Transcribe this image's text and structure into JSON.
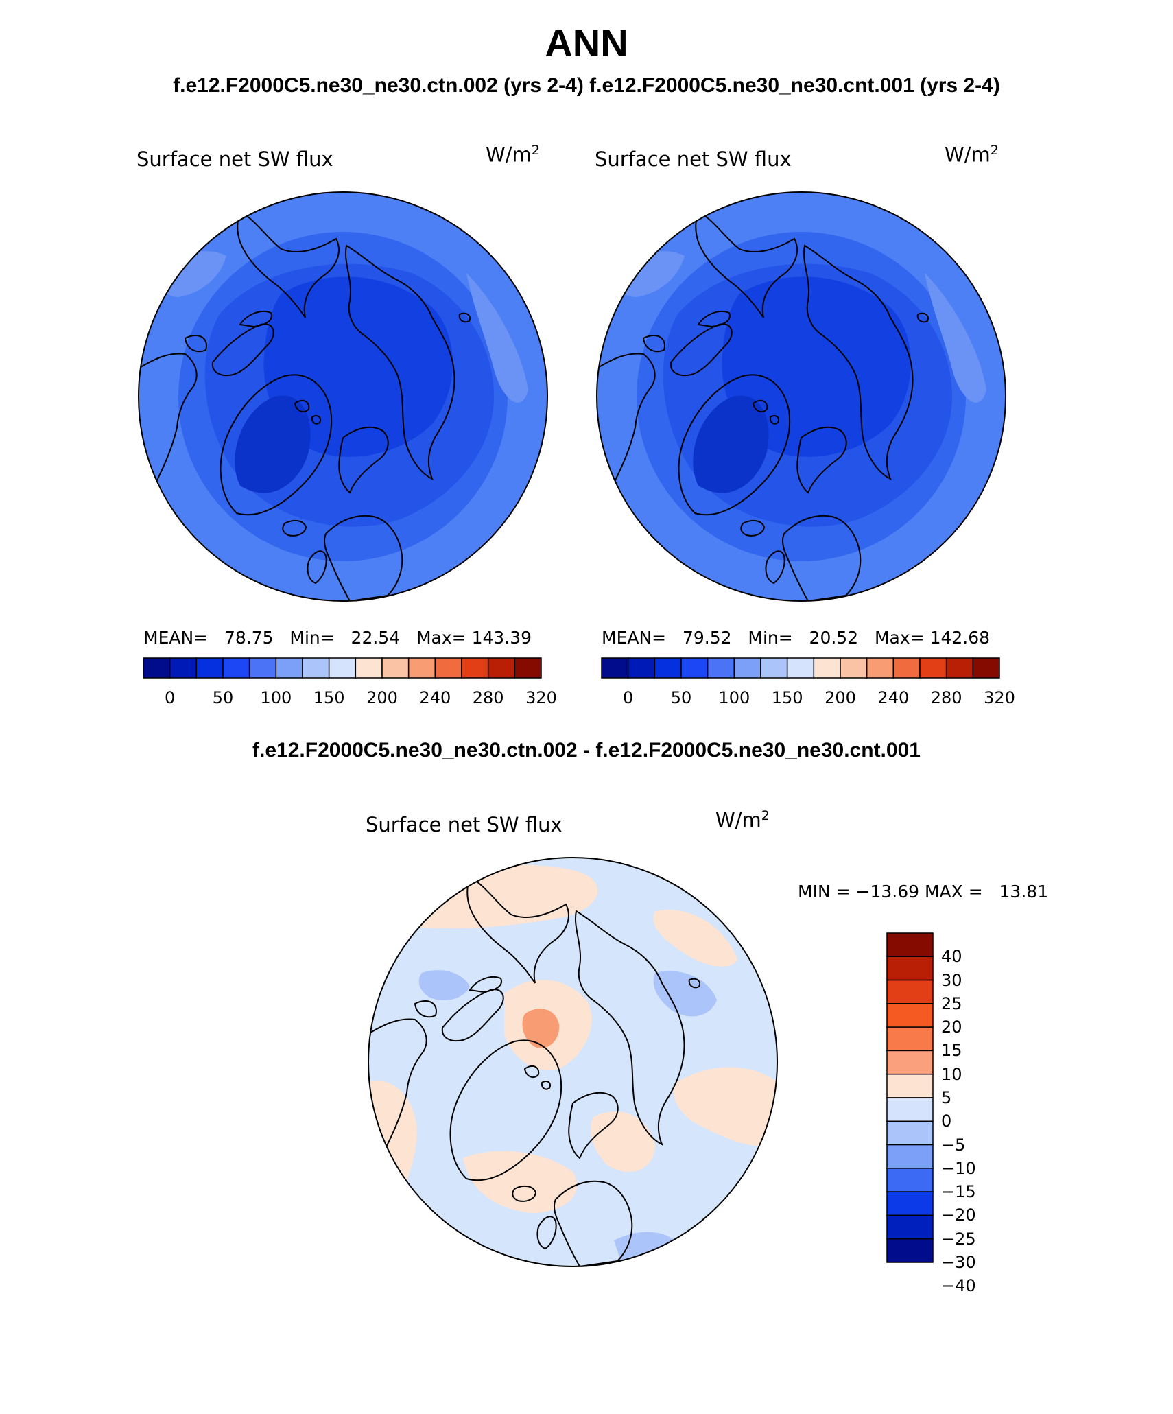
{
  "header": {
    "title": "ANN",
    "cases_title": "f.e12.F2000C5.ne30_ne30.ctn.002 (yrs 2-4) f.e12.F2000C5.ne30_ne30.cnt.001 (yrs 2-4)",
    "diff_title": "f.e12.F2000C5.ne30_ne30.ctn.002 - f.e12.F2000C5.ne30_ne30.cnt.001"
  },
  "panels": [
    {
      "variable": "Surface net SW flux",
      "unit_base": "W/m",
      "unit_exp": "2",
      "mean_label": "MEAN=",
      "mean_value": "78.75",
      "min_label": "Min=",
      "min_value": "22.54",
      "max_label": "Max=",
      "max_value": "143.39",
      "ocean_color": "#4d80f5",
      "polar_color": "#1340e0"
    },
    {
      "variable": "Surface net SW flux",
      "unit_base": "W/m",
      "unit_exp": "2",
      "mean_label": "MEAN=",
      "mean_value": "79.52",
      "min_label": "Min=",
      "min_value": "20.52",
      "max_label": "Max=",
      "max_value": "142.68",
      "ocean_color": "#4d80f5",
      "polar_color": "#1340e0"
    }
  ],
  "abs_colorbar": {
    "colors": [
      "#000c8c",
      "#001ab8",
      "#0530e0",
      "#1b47f5",
      "#4a74f5",
      "#7c9ff7",
      "#abc4fa",
      "#d5e3fc",
      "#fde3d2",
      "#fbc3a6",
      "#f89c74",
      "#f06c3f",
      "#e33f16",
      "#b81f05",
      "#850a00"
    ],
    "ticks": [
      "0",
      "50",
      "100",
      "150",
      "200",
      "240",
      "280",
      "320"
    ]
  },
  "diff_panel": {
    "variable": "Surface net SW flux",
    "unit_base": "W/m",
    "unit_exp": "2",
    "min_label": "MIN =",
    "min_value": "−13.69",
    "max_label": "MAX =",
    "max_value": "13.81",
    "ocean_color": "#d5e5fc",
    "colors_top_down": [
      "#850a00",
      "#b81f05",
      "#e33f16",
      "#f55a22",
      "#f87a4a",
      "#fba07c",
      "#fde3d2",
      "#d5e3fc",
      "#abc4fa",
      "#7c9ff7",
      "#3c6af5",
      "#0c3ae8",
      "#0020bd",
      "#000c8c"
    ],
    "ticks": [
      "40",
      "30",
      "25",
      "20",
      "15",
      "10",
      "5",
      "0",
      "−5",
      "−10",
      "−15",
      "−20",
      "−25",
      "−30",
      "−40"
    ]
  }
}
